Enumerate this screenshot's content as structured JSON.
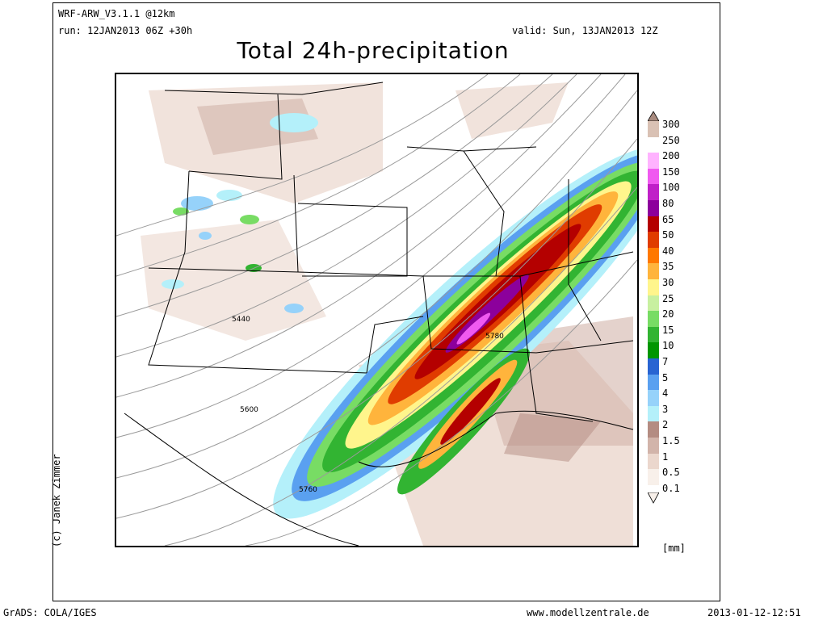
{
  "header": {
    "model": "WRF-ARW_V3.1.1 @12km",
    "run": "run: 12JAN2013 06Z +30h",
    "valid": "valid: Sun, 13JAN2013 12Z",
    "title": "Total 24h-precipitation"
  },
  "map": {
    "contour_labels": [
      "5440",
      "5600",
      "5760",
      "5780"
    ]
  },
  "legend": {
    "unit": "[mm]",
    "levels": [
      {
        "label": "300",
        "color": "#a88a7e"
      },
      {
        "label": "250",
        "color": "#d9c1b4"
      },
      {
        "label": "200",
        "color": "#ffffff"
      },
      {
        "label": "150",
        "color": "#ffb3ff"
      },
      {
        "label": "100",
        "color": "#f05af0"
      },
      {
        "label": "80",
        "color": "#c020c8"
      },
      {
        "label": "65",
        "color": "#8c009c"
      },
      {
        "label": "50",
        "color": "#b40000"
      },
      {
        "label": "40",
        "color": "#e03c00"
      },
      {
        "label": "35",
        "color": "#ff7800"
      },
      {
        "label": "30",
        "color": "#ffb43c"
      },
      {
        "label": "25",
        "color": "#fff58c"
      },
      {
        "label": "20",
        "color": "#c8f0a0"
      },
      {
        "label": "15",
        "color": "#78dc64"
      },
      {
        "label": "10",
        "color": "#32b432"
      },
      {
        "label": "7",
        "color": "#009600"
      },
      {
        "label": "5",
        "color": "#2864d2"
      },
      {
        "label": "4",
        "color": "#5aa0f0"
      },
      {
        "label": "3",
        "color": "#96d2fa"
      },
      {
        "label": "2",
        "color": "#b4f0fa"
      },
      {
        "label": "1.5",
        "color": "#b48c82"
      },
      {
        "label": "1",
        "color": "#d2b4aa"
      },
      {
        "label": "0.5",
        "color": "#ebd7cd"
      },
      {
        "label": "0.1",
        "color": "#f8f0ea"
      }
    ]
  },
  "credit": "(c) Janek Zimmer",
  "footer": {
    "left": "GrADS: COLA/IGES",
    "center": "www.modellzentrale.de",
    "right": "2013-01-12-12:51"
  }
}
